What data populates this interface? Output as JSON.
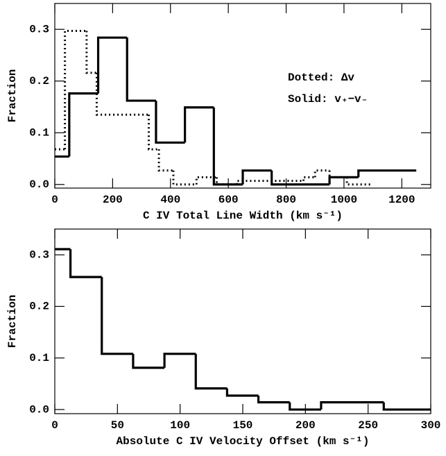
{
  "chart_data": [
    {
      "type": "histogram",
      "x_label": "C IV Total Line Width (km s⁻¹)",
      "y_label": "Fraction",
      "annotations": [
        "Dotted: Δv",
        "Solid:  v₊−v₋"
      ],
      "xlim": [
        0,
        1300
      ],
      "xticks": [
        0,
        200,
        400,
        600,
        800,
        1000,
        1200
      ],
      "ylim": [
        -0.007,
        0.35
      ],
      "yticks": [
        {
          "value": 0,
          "label": "0.0"
        },
        0.1,
        0.2,
        0.3
      ],
      "series": [
        {
          "style": "solid",
          "color": "#000000",
          "bins": [
            0,
            50,
            150,
            250,
            350,
            450,
            550,
            650,
            750,
            850,
            950,
            1050,
            1150,
            1250
          ],
          "values": [
            0.054,
            0.176,
            0.284,
            0.162,
            0.081,
            0.149,
            0,
            0.027,
            0,
            0,
            0.014,
            0.027,
            0.027
          ]
        },
        {
          "style": "dotted",
          "color": "#000000",
          "bins": [
            0,
            35,
            110,
            145,
            325,
            360,
            410,
            490,
            560,
            630,
            860,
            900,
            950,
            1010,
            1100
          ],
          "values": [
            0.068,
            0.297,
            0.216,
            0.135,
            0.068,
            0.027,
            0,
            0.014,
            0,
            0.007,
            0.014,
            0.027,
            0.014,
            0
          ]
        }
      ]
    },
    {
      "type": "histogram",
      "x_label": "Absolute C IV Velocity Offset (km s⁻¹)",
      "y_label": "Fraction",
      "xlim": [
        0,
        300
      ],
      "xticks": [
        0,
        50,
        100,
        150,
        200,
        250,
        300
      ],
      "ylim": [
        -0.008,
        0.35
      ],
      "yticks": [
        {
          "value": 0,
          "label": "0.0"
        },
        0.1,
        0.2,
        0.3
      ],
      "series": [
        {
          "style": "solid",
          "color": "#000000",
          "bins": [
            0,
            12.5,
            37.5,
            62.5,
            87.5,
            112.5,
            137.5,
            162.5,
            187.5,
            212.5,
            262.5,
            300
          ],
          "values": [
            0.311,
            0.257,
            0.108,
            0.081,
            0.108,
            0.041,
            0.027,
            0.014,
            0,
            0.014,
            0
          ]
        }
      ]
    }
  ]
}
